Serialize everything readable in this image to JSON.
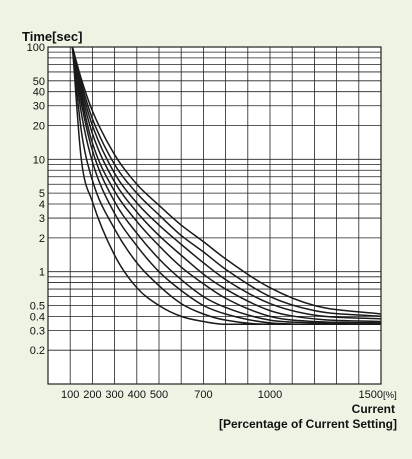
{
  "chart_data": {
    "type": "line",
    "title": "",
    "ylabel": "Time[sec]",
    "xlabel_lines": [
      "Current",
      "[Percentage of Current Setting]"
    ],
    "x_unit": "[%]",
    "y_scale": "log",
    "x_scale": "linear",
    "xlim": [
      0,
      1500
    ],
    "ylim": [
      0.1,
      100
    ],
    "grid": true,
    "x_ticks": [
      100,
      200,
      300,
      400,
      500,
      700,
      1000,
      1500
    ],
    "x_tick_labels": [
      "100",
      "200",
      "300",
      "400",
      "500",
      "700",
      "1000",
      "1500"
    ],
    "y_ticks": [
      0.2,
      0.3,
      0.4,
      0.5,
      1,
      2,
      3,
      4,
      5,
      10,
      20,
      30,
      40,
      50,
      100
    ],
    "y_tick_labels": [
      "0.2",
      "0.3",
      "0.4",
      "0.5",
      "1",
      "2",
      "3",
      "4",
      "5",
      "10",
      "20",
      "30",
      "40",
      "50",
      "100"
    ],
    "series": [
      {
        "x": [
          110,
          150,
          200,
          300,
          400,
          500,
          600,
          700,
          800,
          1000,
          1200,
          1500
        ],
        "values": [
          100,
          10,
          4.2,
          1.4,
          0.72,
          0.5,
          0.4,
          0.36,
          0.34,
          0.34,
          0.34,
          0.34
        ]
      },
      {
        "x": [
          110,
          150,
          200,
          300,
          400,
          500,
          600,
          700,
          800,
          1000,
          1200,
          1500
        ],
        "values": [
          100,
          18,
          6.5,
          2.4,
          1.2,
          0.75,
          0.52,
          0.42,
          0.37,
          0.34,
          0.34,
          0.34
        ]
      },
      {
        "x": [
          110,
          150,
          200,
          300,
          400,
          500,
          600,
          700,
          800,
          1000,
          1200,
          1500
        ],
        "values": [
          100,
          26,
          9.5,
          3.3,
          1.7,
          1.0,
          0.68,
          0.5,
          0.42,
          0.35,
          0.34,
          0.34
        ]
      },
      {
        "x": [
          110,
          150,
          200,
          300,
          400,
          500,
          600,
          700,
          800,
          1000,
          1200,
          1500
        ],
        "values": [
          100,
          32,
          12,
          4.2,
          2.2,
          1.3,
          0.85,
          0.6,
          0.48,
          0.37,
          0.35,
          0.34
        ]
      },
      {
        "x": [
          110,
          150,
          200,
          300,
          400,
          500,
          600,
          700,
          800,
          1000,
          1200,
          1500
        ],
        "values": [
          100,
          36,
          14,
          5.2,
          2.8,
          1.7,
          1.1,
          0.78,
          0.58,
          0.4,
          0.36,
          0.35
        ]
      },
      {
        "x": [
          110,
          150,
          200,
          300,
          400,
          500,
          600,
          700,
          800,
          1000,
          1200,
          1500
        ],
        "values": [
          100,
          40,
          17,
          6.3,
          3.4,
          2.1,
          1.4,
          0.95,
          0.7,
          0.45,
          0.38,
          0.36
        ]
      },
      {
        "x": [
          110,
          150,
          200,
          300,
          400,
          500,
          600,
          700,
          800,
          1000,
          1200,
          1500
        ],
        "values": [
          100,
          44,
          20,
          7.5,
          4.1,
          2.6,
          1.75,
          1.2,
          0.85,
          0.52,
          0.41,
          0.38
        ]
      },
      {
        "x": [
          110,
          150,
          200,
          300,
          400,
          500,
          600,
          700,
          800,
          1000,
          1200,
          1500
        ],
        "values": [
          100,
          48,
          23,
          9,
          5,
          3.2,
          2.1,
          1.5,
          1.05,
          0.6,
          0.45,
          0.4
        ]
      },
      {
        "x": [
          110,
          150,
          200,
          300,
          400,
          500,
          600,
          700,
          800,
          1000,
          1200,
          1500
        ],
        "values": [
          100,
          52,
          27,
          11,
          6,
          3.9,
          2.6,
          1.85,
          1.3,
          0.72,
          0.5,
          0.42
        ]
      }
    ],
    "colors": {
      "background": "#eef4e4",
      "plot_area": "#ffffff",
      "grid": "#222222",
      "line": "#1a1a1a"
    }
  }
}
